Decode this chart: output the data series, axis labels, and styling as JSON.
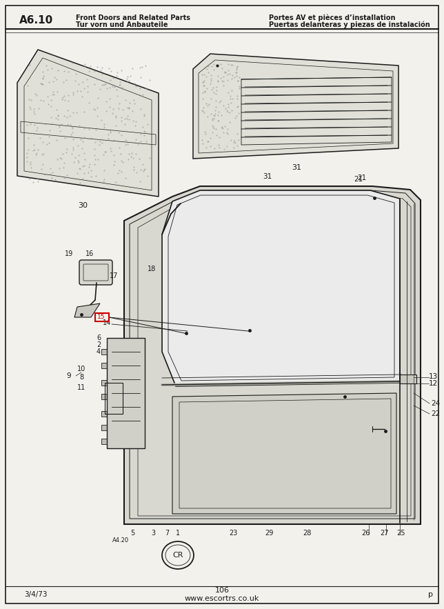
{
  "page_color": "#f2f1ec",
  "line_color": "#1a1a1a",
  "text_color": "#1a1a1a",
  "red_color": "#cc0000",
  "page_code": "A6.10",
  "title_left_line1": "Front Doors and Related Parts",
  "title_left_line2": "Tur vorn und Anbauteile",
  "title_right_line1": "Portes AV et pièces d’installation",
  "title_right_line2": "Puertas delanteras y piezas de instalación",
  "footer_left": "3/4/73",
  "footer_center": "106",
  "footer_website": "www.escortrs.co.uk",
  "footer_mark": "p",
  "highlight_label": "15",
  "note_ref": "A4.20"
}
